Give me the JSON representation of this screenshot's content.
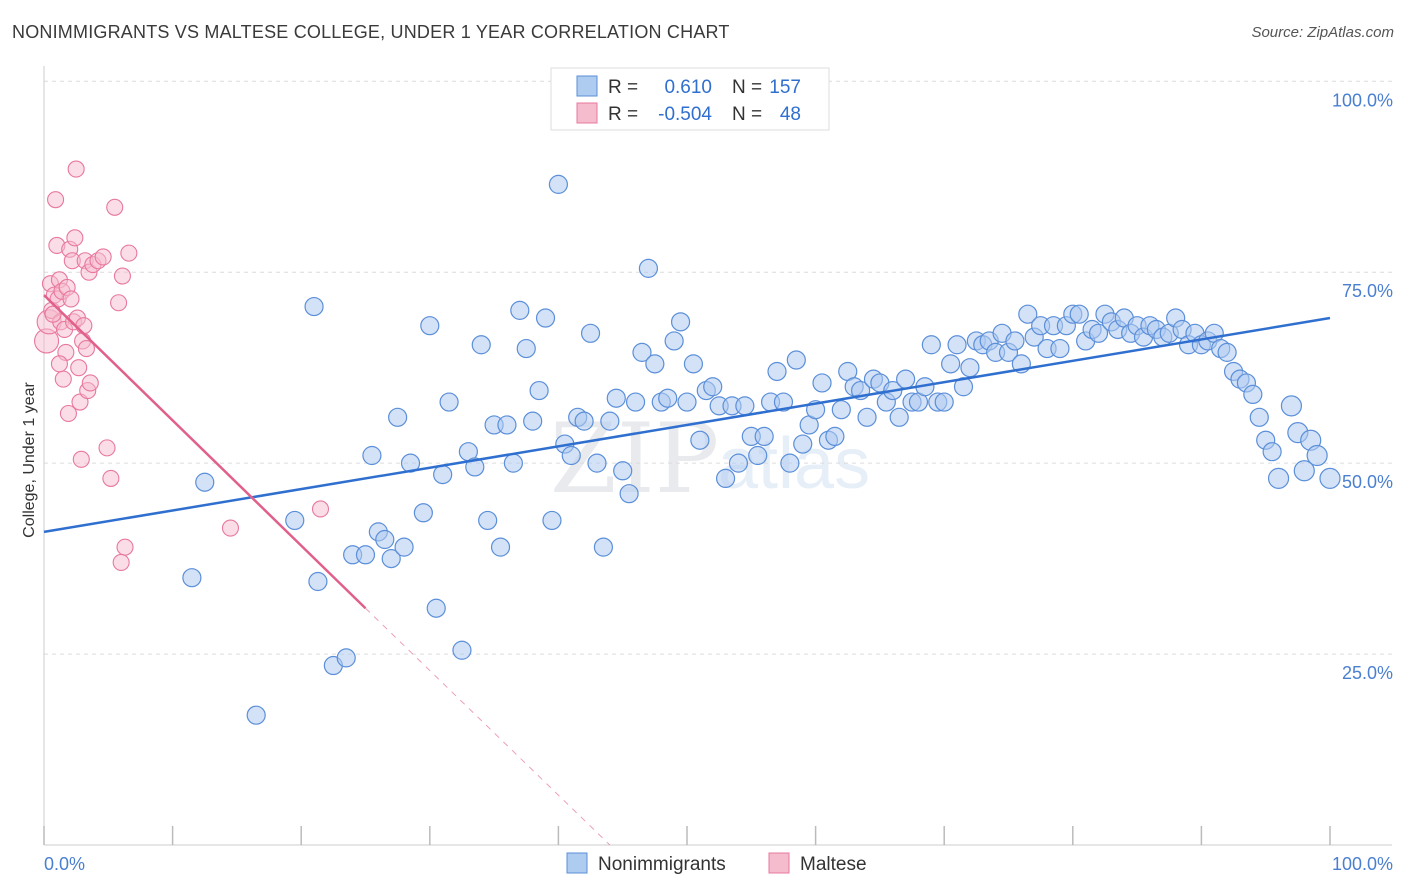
{
  "header": {
    "title": "NONIMMIGRANTS VS MALTESE COLLEGE, UNDER 1 YEAR CORRELATION CHART",
    "source": "Source: ZipAtlas.com"
  },
  "watermark": {
    "zip": "ZIP",
    "atlas": "atlas"
  },
  "colors": {
    "blue": "#5b8fd9",
    "blue_fill": "#aecbf0",
    "blue_line": "#2f6fcf",
    "pink": "#e8789d",
    "pink_fill": "#f5bccd",
    "pink_line": "#e0608a",
    "tick_text": "#4a7fd0",
    "grid": "#dcdcdc"
  },
  "stats": {
    "r_label": "R =",
    "n_label": "N =",
    "series": [
      {
        "name": "Nonimmigrants",
        "r": "0.610",
        "n": "157"
      },
      {
        "name": "Maltese",
        "r": "-0.504",
        "n": "48"
      }
    ]
  },
  "chart_data": {
    "type": "scatter",
    "title": "NONIMMIGRANTS VS MALTESE COLLEGE, UNDER 1 YEAR CORRELATION CHART",
    "xlabel": "",
    "ylabel": "College, Under 1 year",
    "xlim": [
      0,
      100
    ],
    "ylim": [
      0,
      102
    ],
    "x_ticks": [
      0,
      10,
      20,
      30,
      40,
      50,
      60,
      70,
      80,
      90,
      100
    ],
    "x_tick_labels": [
      {
        "value": 0,
        "label": "0.0%"
      },
      {
        "value": 100,
        "label": "100.0%"
      }
    ],
    "y_gridlines": [
      25,
      50,
      75,
      100
    ],
    "y_tick_labels": [
      {
        "value": 100,
        "label": "100.0%"
      },
      {
        "value": 75,
        "label": "75.0%"
      },
      {
        "value": 50,
        "label": "50.0%"
      },
      {
        "value": 25,
        "label": "25.0%"
      }
    ],
    "legend": [
      "Nonimmigrants",
      "Maltese"
    ],
    "series": [
      {
        "name": "Nonimmigrants",
        "color": "#5b8fd9",
        "trend": {
          "x0": 0,
          "y0": 41,
          "x1": 100,
          "y1": 69
        },
        "points": [
          [
            11.5,
            35
          ],
          [
            12.5,
            47.5
          ],
          [
            16.5,
            17
          ],
          [
            19.5,
            42.5
          ],
          [
            21,
            70.5
          ],
          [
            21.3,
            34.5
          ],
          [
            22.5,
            23.5
          ],
          [
            23.5,
            24.5
          ],
          [
            24,
            38
          ],
          [
            25,
            38
          ],
          [
            25.5,
            51
          ],
          [
            26,
            41
          ],
          [
            26.5,
            40
          ],
          [
            27,
            37.5
          ],
          [
            27.5,
            56
          ],
          [
            28,
            39
          ],
          [
            28.5,
            50
          ],
          [
            29.5,
            43.5
          ],
          [
            30,
            68
          ],
          [
            30.5,
            31
          ],
          [
            31,
            48.5
          ],
          [
            31.5,
            58
          ],
          [
            32.5,
            25.5
          ],
          [
            33,
            51.5
          ],
          [
            33.5,
            49.5
          ],
          [
            34,
            65.5
          ],
          [
            34.5,
            42.5
          ],
          [
            35,
            55
          ],
          [
            35.5,
            39
          ],
          [
            36,
            55
          ],
          [
            36.5,
            50
          ],
          [
            37,
            70
          ],
          [
            37.5,
            65
          ],
          [
            38,
            55.5
          ],
          [
            38.5,
            59.5
          ],
          [
            39,
            69
          ],
          [
            39.5,
            42.5
          ],
          [
            40,
            86.5
          ],
          [
            40.5,
            52.5
          ],
          [
            41,
            51
          ],
          [
            41.5,
            56
          ],
          [
            42,
            55.5
          ],
          [
            42.5,
            67
          ],
          [
            43,
            50
          ],
          [
            43.5,
            39
          ],
          [
            44,
            55.5
          ],
          [
            44.5,
            58.5
          ],
          [
            45,
            49
          ],
          [
            45.5,
            46
          ],
          [
            46,
            58
          ],
          [
            46.5,
            64.5
          ],
          [
            47,
            75.5
          ],
          [
            47.5,
            63
          ],
          [
            48,
            58
          ],
          [
            48.5,
            58.5
          ],
          [
            49,
            66
          ],
          [
            49.5,
            68.5
          ],
          [
            50,
            58
          ],
          [
            50.5,
            63
          ],
          [
            51,
            53
          ],
          [
            51.5,
            59.5
          ],
          [
            52,
            60
          ],
          [
            52.5,
            57.5
          ],
          [
            53,
            48
          ],
          [
            53.5,
            57.5
          ],
          [
            54,
            50
          ],
          [
            54.5,
            57.5
          ],
          [
            55,
            53.5
          ],
          [
            55.5,
            51
          ],
          [
            56,
            53.5
          ],
          [
            56.5,
            58
          ],
          [
            57,
            62
          ],
          [
            57.5,
            58
          ],
          [
            58,
            50
          ],
          [
            58.5,
            63.5
          ],
          [
            59,
            52.5
          ],
          [
            59.5,
            55
          ],
          [
            60,
            57
          ],
          [
            60.5,
            60.5
          ],
          [
            61,
            53
          ],
          [
            61.5,
            53.5
          ],
          [
            62,
            57
          ],
          [
            62.5,
            62
          ],
          [
            63,
            60
          ],
          [
            63.5,
            59.5
          ],
          [
            64,
            56
          ],
          [
            64.5,
            61
          ],
          [
            65,
            60.5
          ],
          [
            65.5,
            58
          ],
          [
            66,
            59.5
          ],
          [
            66.5,
            56
          ],
          [
            67,
            61
          ],
          [
            67.5,
            58
          ],
          [
            68,
            58
          ],
          [
            68.5,
            60
          ],
          [
            69,
            65.5
          ],
          [
            69.5,
            58
          ],
          [
            70,
            58
          ],
          [
            70.5,
            63
          ],
          [
            71,
            65.5
          ],
          [
            71.5,
            60
          ],
          [
            72,
            62.5
          ],
          [
            72.5,
            66
          ],
          [
            73,
            65.5
          ],
          [
            73.5,
            66
          ],
          [
            74,
            64.5
          ],
          [
            74.5,
            67
          ],
          [
            75,
            64.5
          ],
          [
            75.5,
            66
          ],
          [
            76,
            63
          ],
          [
            76.5,
            69.5
          ],
          [
            77,
            66.5
          ],
          [
            77.5,
            68
          ],
          [
            78,
            65
          ],
          [
            78.5,
            68
          ],
          [
            79,
            65
          ],
          [
            79.5,
            68
          ],
          [
            80,
            69.5
          ],
          [
            80.5,
            69.5
          ],
          [
            81,
            66
          ],
          [
            81.5,
            67.5
          ],
          [
            82,
            67
          ],
          [
            82.5,
            69.5
          ],
          [
            83,
            68.5
          ],
          [
            83.5,
            67.5
          ],
          [
            84,
            69
          ],
          [
            84.5,
            67
          ],
          [
            85,
            68
          ],
          [
            85.5,
            66.5
          ],
          [
            86,
            68
          ],
          [
            86.5,
            67.5
          ],
          [
            87,
            66.5
          ],
          [
            87.5,
            67
          ],
          [
            88,
            69
          ],
          [
            88.5,
            67.5
          ],
          [
            89,
            65.5
          ],
          [
            89.5,
            67
          ],
          [
            90,
            65.5
          ],
          [
            90.5,
            66
          ],
          [
            91,
            67
          ],
          [
            91.5,
            65
          ],
          [
            92,
            64.5
          ],
          [
            92.5,
            62
          ],
          [
            93,
            61
          ],
          [
            93.5,
            60.5
          ],
          [
            94,
            59
          ],
          [
            94.5,
            56
          ],
          [
            95,
            53
          ],
          [
            95.5,
            51.5
          ],
          [
            96,
            48
          ],
          [
            97,
            57.5
          ],
          [
            97.5,
            54
          ],
          [
            98,
            49
          ],
          [
            98.5,
            53
          ],
          [
            99,
            51
          ],
          [
            100,
            48
          ]
        ]
      },
      {
        "name": "Maltese",
        "color": "#e8789d",
        "trend": {
          "x0": 0,
          "y0": 72,
          "x1": 25,
          "y1": 31,
          "dash_to_x": 44,
          "dash_to_y": 0
        },
        "points": [
          [
            0.2,
            66
          ],
          [
            0.4,
            68.5
          ],
          [
            0.5,
            73.5
          ],
          [
            0.6,
            70
          ],
          [
            0.8,
            72
          ],
          [
            0.9,
            84.5
          ],
          [
            1.0,
            78.5
          ],
          [
            1.1,
            71.5
          ],
          [
            1.2,
            74
          ],
          [
            1.3,
            68.5
          ],
          [
            1.4,
            72.5
          ],
          [
            1.5,
            61
          ],
          [
            1.6,
            67.5
          ],
          [
            1.7,
            64.5
          ],
          [
            1.8,
            73
          ],
          [
            1.9,
            56.5
          ],
          [
            2.0,
            78
          ],
          [
            2.1,
            71.5
          ],
          [
            2.2,
            76.5
          ],
          [
            2.3,
            68.5
          ],
          [
            2.4,
            79.5
          ],
          [
            2.5,
            88.5
          ],
          [
            2.6,
            69
          ],
          [
            2.7,
            62.5
          ],
          [
            2.8,
            58
          ],
          [
            2.9,
            50.5
          ],
          [
            3.0,
            66
          ],
          [
            3.1,
            68
          ],
          [
            3.2,
            76.5
          ],
          [
            3.3,
            65
          ],
          [
            3.4,
            59.5
          ],
          [
            3.5,
            75
          ],
          [
            3.6,
            60.5
          ],
          [
            3.8,
            76
          ],
          [
            4.2,
            76.5
          ],
          [
            4.6,
            77
          ],
          [
            4.9,
            52
          ],
          [
            5.2,
            48
          ],
          [
            5.5,
            83.5
          ],
          [
            5.8,
            71
          ],
          [
            6.1,
            74.5
          ],
          [
            6.3,
            39
          ],
          [
            6.6,
            77.5
          ],
          [
            6.0,
            37
          ],
          [
            14.5,
            41.5
          ],
          [
            21.5,
            44
          ],
          [
            1.2,
            63
          ],
          [
            0.7,
            69.5
          ]
        ]
      }
    ]
  }
}
